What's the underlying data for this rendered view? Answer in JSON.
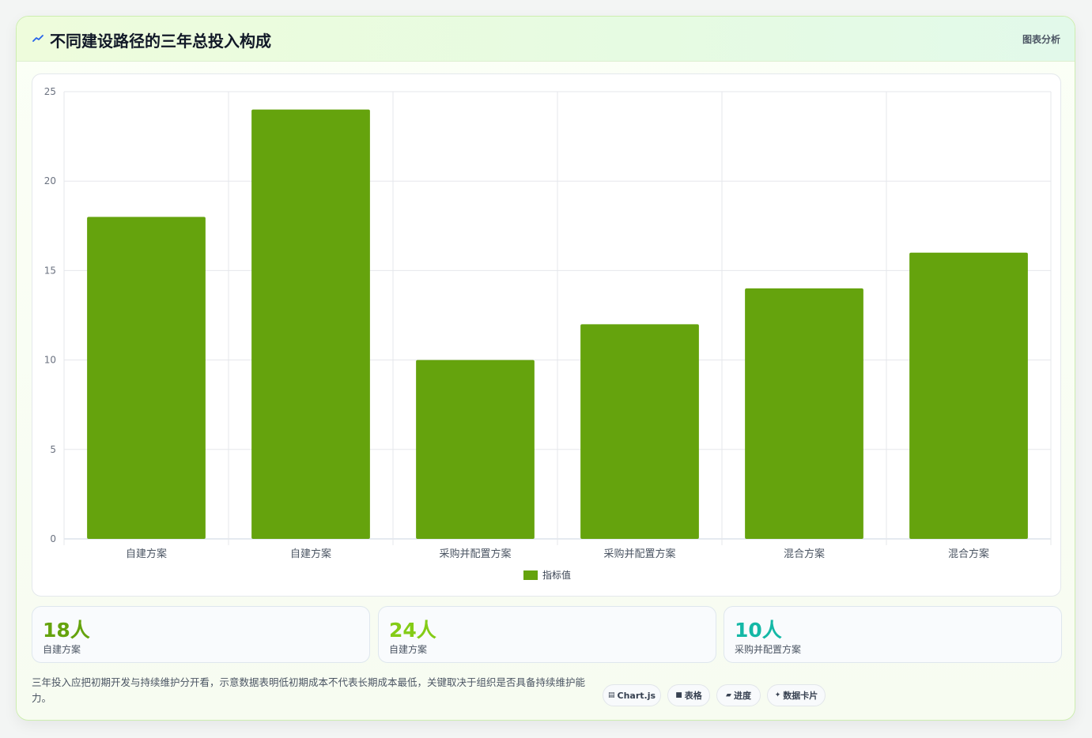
{
  "header": {
    "title": "不同建设路径的三年总投入构成",
    "tag": "图表分析"
  },
  "chart_data": {
    "type": "bar",
    "categories": [
      "自建方案",
      "自建方案",
      "采购并配置方案",
      "采购并配置方案",
      "混合方案",
      "混合方案"
    ],
    "series": [
      {
        "name": "指标值",
        "values": [
          18,
          24,
          10,
          12,
          14,
          16
        ],
        "color": "#65a30d"
      }
    ],
    "ylim": [
      0,
      25
    ],
    "yticks": [
      0,
      5,
      10,
      15,
      20,
      25
    ],
    "grid": true,
    "legend": "bottom"
  },
  "kpis": [
    {
      "value": "18人",
      "label": "自建方案",
      "color": "#65a30d"
    },
    {
      "value": "24人",
      "label": "自建方案",
      "color": "#84cc16"
    },
    {
      "value": "10人",
      "label": "采购并配置方案",
      "color": "#14b8a6"
    }
  ],
  "footer": {
    "description": "三年投入应把初期开发与持续维护分开看，示意数据表明低初期成本不代表长期成本最低，关键取决于组织是否具备持续维护能力。",
    "pills": [
      {
        "icon": "chart-icon",
        "glyph": "▤",
        "label": "Chart.js"
      },
      {
        "icon": "table-icon",
        "glyph": "■",
        "label": "表格"
      },
      {
        "icon": "progress-icon",
        "glyph": "▰",
        "label": "进度"
      },
      {
        "icon": "sparkle-icon",
        "glyph": "✦",
        "label": "数据卡片"
      }
    ]
  }
}
